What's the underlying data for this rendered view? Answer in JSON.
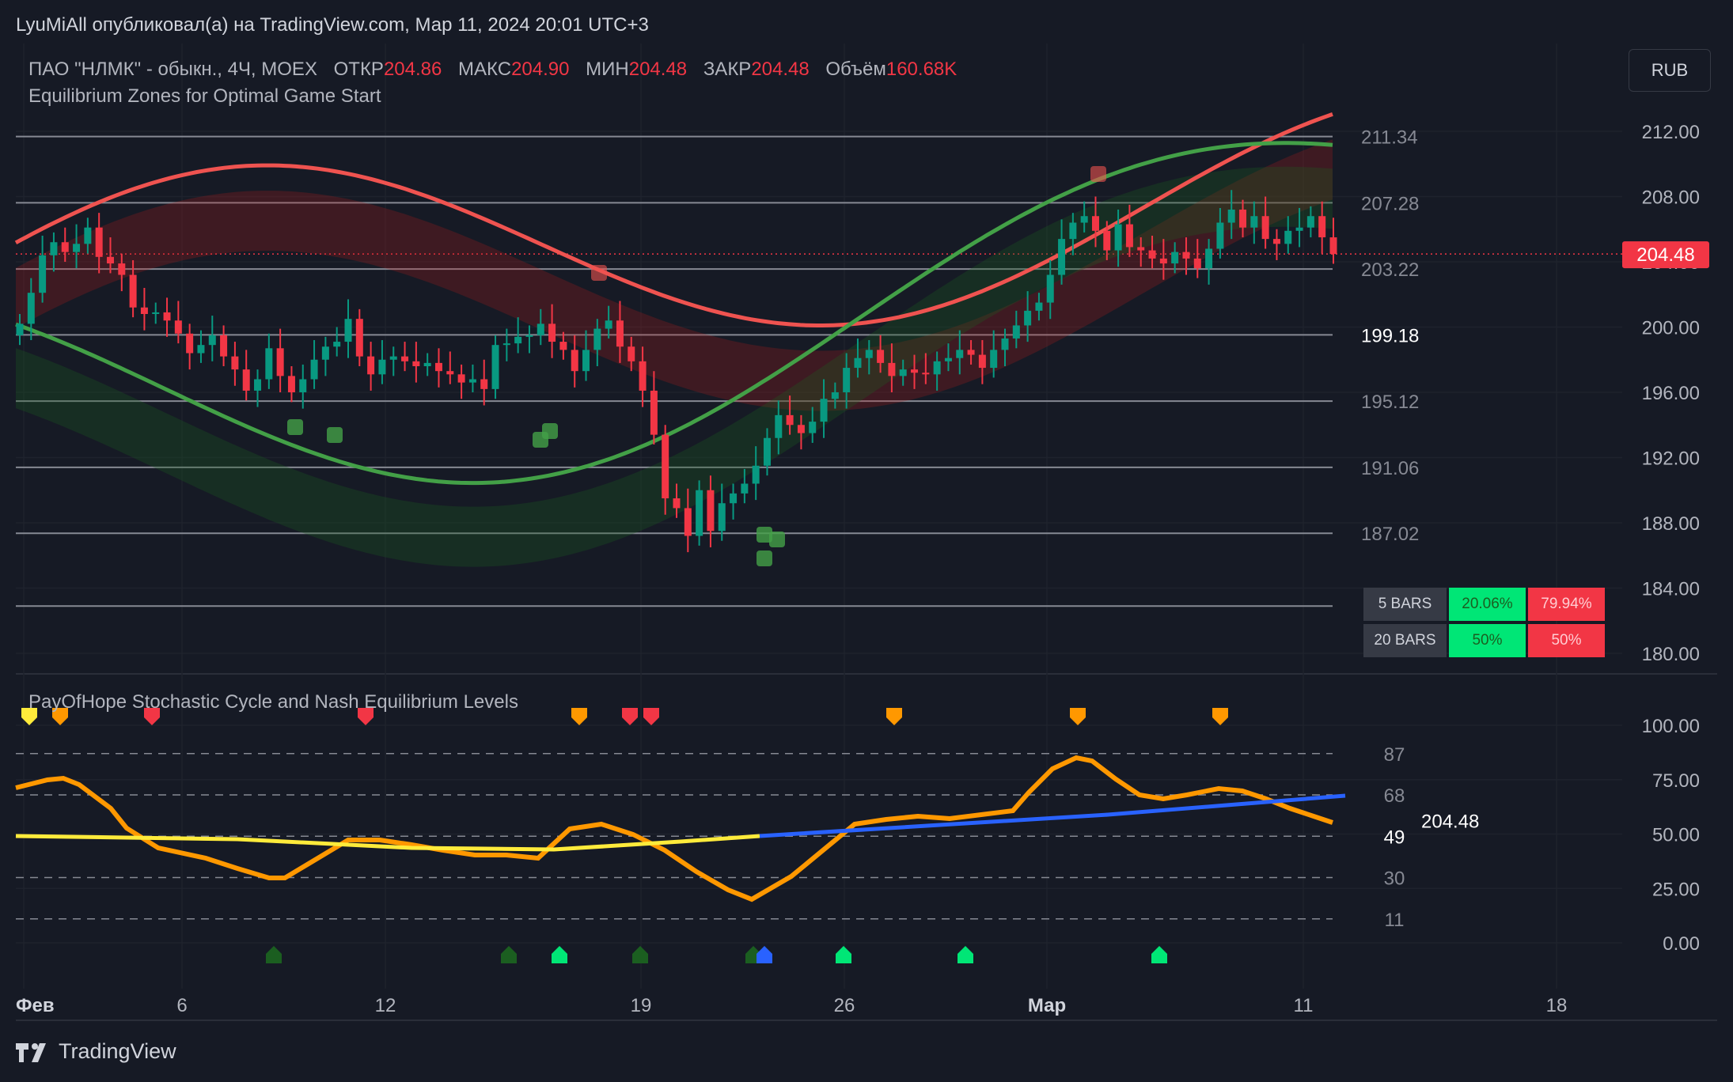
{
  "header": {
    "published": "LyuMiAll опубликовал(а) на TradingView.com, Мар 11, 2024 20:01 UTC+3"
  },
  "legend": {
    "symbol": "ПАО \"НЛМК\" - обыкн., 4Ч, MOEX",
    "open_label": "ОТКР",
    "open_value": "204.86",
    "high_label": "МАКС",
    "high_value": "204.90",
    "low_label": "МИН",
    "low_value": "204.48",
    "close_label": "ЗАКР",
    "close_value": "204.48",
    "volume_label": "Объём",
    "volume_value": "160.68K",
    "indicator1": "Equilibrium Zones for Optimal Game Start",
    "indicator2": "PayOfHope Stochastic Cycle and Nash Equilibrium Levels"
  },
  "currency": "RUB",
  "price_axis": [
    "212.00",
    "208.00",
    "204.00",
    "200.00",
    "196.00",
    "192.00",
    "188.00",
    "184.00",
    "180.00"
  ],
  "last_price": "204.48",
  "zone_levels": [
    "211.34",
    "207.28",
    "203.22",
    "199.18",
    "195.12",
    "191.06",
    "187.02"
  ],
  "osc_axis": [
    "100.00",
    "75.00",
    "50.00",
    "25.00",
    "0.00"
  ],
  "osc_levels": [
    "87",
    "68",
    "49",
    "30",
    "11"
  ],
  "osc_value": "204.48",
  "time_axis": [
    "Фев",
    "6",
    "12",
    "19",
    "26",
    "Мар",
    "11",
    "18"
  ],
  "stats_table": [
    {
      "label": "5 BARS",
      "green": "20.06%",
      "red": "79.94%"
    },
    {
      "label": "20 BARS",
      "green": "50%",
      "red": "50%"
    }
  ],
  "footer": {
    "brand": "TradingView"
  },
  "colors": {
    "bg": "#161a25",
    "up": "#089981",
    "down": "#f23645",
    "zone_green": "#43a047",
    "zone_red": "#ef5350",
    "blue": "#2962ff",
    "yellow": "#ffeb3b",
    "orange": "#ff9800"
  }
}
